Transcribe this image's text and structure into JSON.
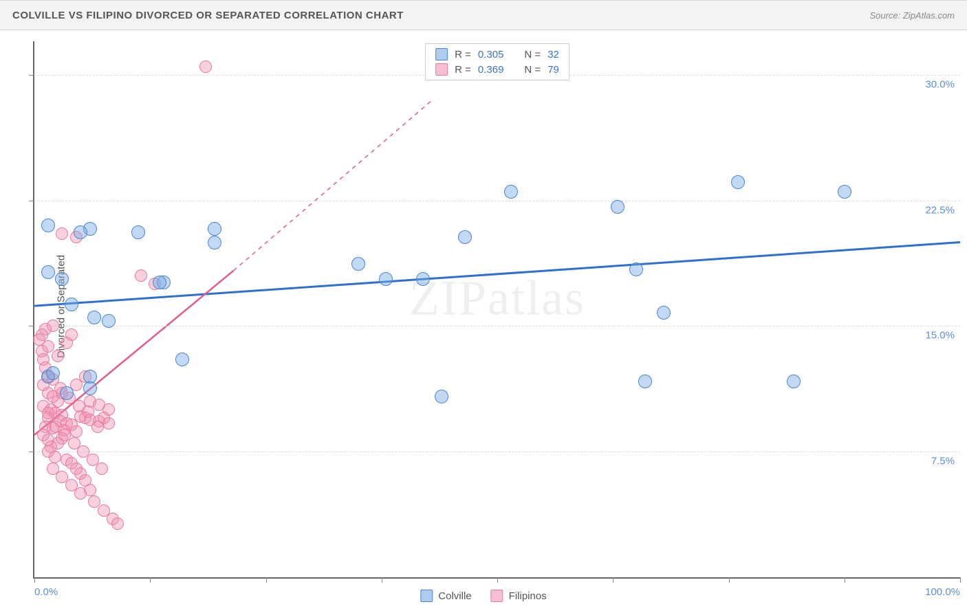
{
  "title": "COLVILLE VS FILIPINO DIVORCED OR SEPARATED CORRELATION CHART",
  "source": "Source: ZipAtlas.com",
  "y_axis_label": "Divorced or Separated",
  "watermark": "ZIPatlas",
  "chart": {
    "type": "scatter",
    "xlim": [
      0,
      100
    ],
    "ylim": [
      0,
      32
    ],
    "x_tick_positions": [
      0,
      12.5,
      25,
      37.5,
      50,
      62.5,
      75,
      87.5,
      100
    ],
    "y_gridlines": [
      7.5,
      15.0,
      22.5,
      30.0
    ],
    "y_tick_labels": [
      "7.5%",
      "15.0%",
      "22.5%",
      "30.0%"
    ],
    "x_label_min": "0.0%",
    "x_label_max": "100.0%",
    "background_color": "#ffffff",
    "grid_color": "#dcdcdc",
    "axis_color": "#666666",
    "series": {
      "colville": {
        "label": "Colville",
        "fill": "rgba(120,170,230,0.45)",
        "stroke": "#4a85d0",
        "marker_radius": 10,
        "trend_line_color": "#2f6fd0",
        "trend_line_width": 3,
        "trend": {
          "x1": 0,
          "y1": 16.2,
          "x2": 100,
          "y2": 20.0
        },
        "R": "0.305",
        "N": "32",
        "points": [
          [
            1.5,
            18.2
          ],
          [
            3.0,
            17.8
          ],
          [
            6.0,
            20.8
          ],
          [
            4.0,
            16.3
          ],
          [
            6.5,
            15.5
          ],
          [
            8.0,
            15.3
          ],
          [
            11.2,
            20.6
          ],
          [
            14.0,
            17.6
          ],
          [
            13.5,
            17.6
          ],
          [
            19.5,
            20.8
          ],
          [
            19.5,
            20.0
          ],
          [
            16.0,
            13.0
          ],
          [
            6.0,
            12.0
          ],
          [
            1.5,
            12.0
          ],
          [
            35.0,
            18.7
          ],
          [
            38.0,
            17.8
          ],
          [
            42.0,
            17.8
          ],
          [
            44.0,
            10.8
          ],
          [
            46.5,
            20.3
          ],
          [
            51.5,
            23.0
          ],
          [
            63.0,
            22.1
          ],
          [
            65.0,
            18.4
          ],
          [
            66.0,
            11.7
          ],
          [
            68.0,
            15.8
          ],
          [
            76.0,
            23.6
          ],
          [
            82.0,
            11.7
          ],
          [
            87.5,
            23.0
          ],
          [
            6.0,
            11.3
          ],
          [
            3.5,
            11.0
          ],
          [
            2.0,
            12.2
          ],
          [
            1.5,
            21.0
          ],
          [
            5.0,
            20.6
          ]
        ]
      },
      "filipinos": {
        "label": "Filipinos",
        "fill": "rgba(240,140,170,0.4)",
        "stroke": "#e87aa0",
        "marker_radius": 9,
        "trend_line_color": "#e35a8a",
        "trend_line_width": 2.5,
        "trend_solid": {
          "x1": 0,
          "y1": 8.5,
          "x2": 21.5,
          "y2": 18.3
        },
        "trend_dashed": {
          "x1": 21.5,
          "y1": 18.3,
          "x2": 43,
          "y2": 28.5
        },
        "R": "0.369",
        "N": "79",
        "points": [
          [
            0.5,
            14.2
          ],
          [
            0.8,
            13.5
          ],
          [
            1.0,
            13.0
          ],
          [
            1.2,
            12.5
          ],
          [
            1.5,
            12.0
          ],
          [
            1.0,
            11.5
          ],
          [
            1.5,
            11.0
          ],
          [
            2.0,
            10.8
          ],
          [
            2.5,
            10.5
          ],
          [
            1.0,
            10.2
          ],
          [
            1.8,
            10.0
          ],
          [
            2.2,
            9.8
          ],
          [
            3.0,
            9.7
          ],
          [
            1.5,
            9.5
          ],
          [
            2.8,
            9.3
          ],
          [
            3.5,
            9.2
          ],
          [
            4.0,
            9.1
          ],
          [
            1.2,
            9.0
          ],
          [
            2.0,
            8.9
          ],
          [
            3.2,
            8.8
          ],
          [
            4.5,
            8.7
          ],
          [
            5.0,
            9.6
          ],
          [
            5.5,
            9.5
          ],
          [
            6.0,
            9.4
          ],
          [
            7.0,
            9.3
          ],
          [
            7.5,
            9.5
          ],
          [
            8.0,
            9.2
          ],
          [
            3.0,
            8.3
          ],
          [
            2.5,
            8.0
          ],
          [
            1.8,
            7.8
          ],
          [
            1.5,
            7.5
          ],
          [
            2.2,
            7.2
          ],
          [
            3.5,
            7.0
          ],
          [
            4.0,
            6.8
          ],
          [
            4.5,
            6.5
          ],
          [
            5.0,
            6.2
          ],
          [
            5.5,
            5.8
          ],
          [
            6.0,
            5.2
          ],
          [
            6.5,
            4.5
          ],
          [
            7.5,
            4.0
          ],
          [
            8.5,
            3.5
          ],
          [
            9.0,
            3.2
          ],
          [
            6.0,
            10.5
          ],
          [
            7.0,
            10.3
          ],
          [
            8.0,
            10.0
          ],
          [
            3.0,
            11.0
          ],
          [
            4.5,
            11.5
          ],
          [
            5.5,
            12.0
          ],
          [
            2.5,
            13.2
          ],
          [
            3.5,
            14.0
          ],
          [
            4.0,
            14.5
          ],
          [
            2.0,
            15.0
          ],
          [
            1.2,
            14.8
          ],
          [
            0.8,
            14.5
          ],
          [
            1.5,
            13.8
          ],
          [
            3.0,
            20.5
          ],
          [
            4.5,
            20.3
          ],
          [
            11.5,
            18.0
          ],
          [
            13.0,
            17.5
          ],
          [
            18.5,
            30.5
          ],
          [
            2.0,
            11.8
          ],
          [
            2.8,
            11.3
          ],
          [
            3.8,
            10.7
          ],
          [
            4.8,
            10.2
          ],
          [
            5.8,
            9.9
          ],
          [
            6.8,
            9.0
          ],
          [
            1.0,
            8.5
          ],
          [
            1.5,
            8.2
          ],
          [
            2.3,
            9.0
          ],
          [
            3.3,
            8.5
          ],
          [
            4.3,
            8.0
          ],
          [
            5.3,
            7.5
          ],
          [
            6.3,
            7.0
          ],
          [
            7.3,
            6.5
          ],
          [
            3.0,
            6.0
          ],
          [
            4.0,
            5.5
          ],
          [
            5.0,
            5.0
          ],
          [
            2.0,
            6.5
          ],
          [
            1.5,
            9.8
          ]
        ]
      }
    }
  },
  "legend_top": {
    "rows": [
      {
        "swatch": "blue",
        "r_label": "R =",
        "r_val": "0.305",
        "n_label": "N =",
        "n_val": "32"
      },
      {
        "swatch": "pink",
        "r_label": "R =",
        "r_val": "0.369",
        "n_label": "N =",
        "n_val": "79"
      }
    ]
  },
  "legend_bottom": {
    "items": [
      {
        "swatch": "blue",
        "label": "Colville"
      },
      {
        "swatch": "pink",
        "label": "Filipinos"
      }
    ]
  }
}
